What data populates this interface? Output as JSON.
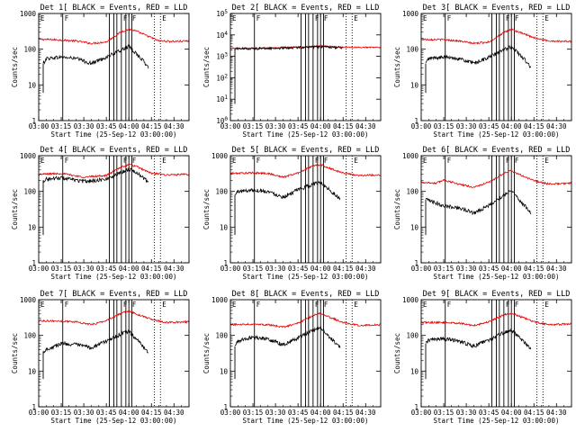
{
  "colors": {
    "events": "#000000",
    "lld": "#e60000",
    "axis": "#000000",
    "background": "#ffffff"
  },
  "chart_data": [
    {
      "type": "line",
      "title": "Det 1[ BLACK = Events, RED = LLD",
      "xlabel": "Start Time (25-Sep-12 03:00:00)",
      "ylabel": "Counts/sec",
      "xlim": [
        "03:00",
        "04:40"
      ],
      "ylim": [
        1,
        1000
      ],
      "yscale": "log",
      "x_ticks": [
        "03:00",
        "03:15",
        "03:30",
        "03:45",
        "04:00",
        "04:15",
        "04:30"
      ],
      "y_ticks": [
        "1",
        "10",
        "100",
        "1000"
      ],
      "markers": [
        {
          "label": "E",
          "time": "03:00"
        },
        {
          "label": "F",
          "time": "03:16"
        },
        {
          "label": "F",
          "time": "03:55"
        },
        {
          "label": "F",
          "time": "04:01"
        },
        {
          "label": "E",
          "time": "04:21"
        }
      ],
      "vlines_solid": [
        "03:16",
        "03:47",
        "03:50",
        "03:52",
        "03:55",
        "03:58",
        "04:00",
        "04:02"
      ],
      "vlines_dotted": [
        "04:17",
        "04:21"
      ],
      "series": [
        {
          "color": "red",
          "x": [
            "03:00",
            "03:10",
            "03:15",
            "03:25",
            "03:35",
            "03:45",
            "03:55",
            "04:00",
            "04:05",
            "04:15",
            "04:20",
            "04:30",
            "04:40"
          ],
          "y": [
            190,
            185,
            180,
            170,
            145,
            160,
            310,
            360,
            320,
            210,
            170,
            165,
            170
          ]
        },
        {
          "color": "black",
          "x": [
            "03:03",
            "03:05",
            "03:15",
            "03:25",
            "03:35",
            "03:45",
            "03:55",
            "04:00",
            "04:05",
            "04:10",
            "04:13"
          ],
          "y": [
            40,
            55,
            60,
            55,
            40,
            60,
            95,
            120,
            75,
            45,
            30
          ]
        }
      ]
    },
    {
      "type": "line",
      "title": "Det 2[ BLACK = Events, RED = LLD",
      "xlabel": "Start Time (25-Sep-12 03:00:00)",
      "ylabel": "Counts/sec",
      "xlim": [
        "03:00",
        "04:40"
      ],
      "ylim": [
        1,
        100000
      ],
      "yscale": "log",
      "x_ticks": [
        "03:00",
        "03:15",
        "03:30",
        "03:45",
        "04:00",
        "04:15",
        "04:30"
      ],
      "y_ticks": [
        "10^0",
        "10^1",
        "10^2",
        "10^3",
        "10^4",
        "10^5"
      ],
      "markers": [
        {
          "label": "E",
          "time": "03:00"
        },
        {
          "label": "F",
          "time": "03:16"
        },
        {
          "label": "F",
          "time": "03:55"
        },
        {
          "label": "F",
          "time": "04:01"
        },
        {
          "label": "E",
          "time": "04:21"
        }
      ],
      "vlines_solid": [
        "03:16",
        "03:47",
        "03:50",
        "03:52",
        "03:55",
        "03:58",
        "04:00",
        "04:02"
      ],
      "vlines_dotted": [
        "04:17",
        "04:21"
      ],
      "series": [
        {
          "color": "red",
          "x": [
            "03:00",
            "03:15",
            "03:30",
            "03:45",
            "04:00",
            "04:15",
            "04:40"
          ],
          "y": [
            2400,
            2400,
            2500,
            2700,
            3000,
            2700,
            2600
          ]
        },
        {
          "color": "black",
          "x": [
            "03:03",
            "03:15",
            "03:30",
            "03:45",
            "04:00",
            "04:15"
          ],
          "y": [
            2300,
            2300,
            2400,
            2600,
            2800,
            2500
          ]
        }
      ]
    },
    {
      "type": "line",
      "title": "Det 3[ BLACK = Events, RED = LLD",
      "xlabel": "Start Time (25-Sep-12 03:00:00)",
      "ylabel": "Counts/sec",
      "xlim": [
        "03:00",
        "04:40"
      ],
      "ylim": [
        1,
        1000
      ],
      "yscale": "log",
      "x_ticks": [
        "03:00",
        "03:15",
        "03:30",
        "03:45",
        "04:00",
        "04:15",
        "04:30"
      ],
      "y_ticks": [
        "1",
        "10",
        "100",
        "1000"
      ],
      "markers": [
        {
          "label": "E",
          "time": "03:00"
        },
        {
          "label": "F",
          "time": "03:16"
        },
        {
          "label": "F",
          "time": "03:55"
        },
        {
          "label": "F",
          "time": "04:01"
        },
        {
          "label": "E",
          "time": "04:21"
        }
      ],
      "vlines_solid": [
        "03:16",
        "03:47",
        "03:50",
        "03:52",
        "03:55",
        "03:58",
        "04:00",
        "04:02"
      ],
      "vlines_dotted": [
        "04:17",
        "04:21"
      ],
      "series": [
        {
          "color": "red",
          "x": [
            "03:00",
            "03:15",
            "03:25",
            "03:35",
            "03:45",
            "03:55",
            "04:00",
            "04:05",
            "04:15",
            "04:25",
            "04:40"
          ],
          "y": [
            190,
            185,
            170,
            145,
            160,
            290,
            360,
            300,
            210,
            170,
            165
          ]
        },
        {
          "color": "black",
          "x": [
            "03:03",
            "03:05",
            "03:15",
            "03:25",
            "03:35",
            "03:45",
            "03:55",
            "04:00",
            "04:05",
            "04:10",
            "04:13"
          ],
          "y": [
            40,
            55,
            60,
            55,
            40,
            60,
            95,
            120,
            75,
            45,
            30
          ]
        }
      ]
    },
    {
      "type": "line",
      "title": "Det 4[ BLACK = Events, RED = LLD",
      "xlabel": "Start Time (25-Sep-12 03:00:00)",
      "ylabel": "Counts/sec",
      "xlim": [
        "03:00",
        "04:40"
      ],
      "ylim": [
        1,
        1000
      ],
      "yscale": "log",
      "x_ticks": [
        "03:00",
        "03:15",
        "03:30",
        "03:45",
        "04:00",
        "04:15",
        "04:30"
      ],
      "y_ticks": [
        "1",
        "10",
        "100",
        "1000"
      ],
      "markers": [
        {
          "label": "E",
          "time": "03:00"
        },
        {
          "label": "F",
          "time": "03:16"
        },
        {
          "label": "F",
          "time": "03:55"
        },
        {
          "label": "F",
          "time": "04:01"
        },
        {
          "label": "E",
          "time": "04:21"
        }
      ],
      "vlines_solid": [
        "03:16",
        "03:47",
        "03:50",
        "03:52",
        "03:55",
        "03:58",
        "04:00",
        "04:02"
      ],
      "vlines_dotted": [
        "04:17",
        "04:21"
      ],
      "series": [
        {
          "color": "red",
          "x": [
            "03:00",
            "03:15",
            "03:30",
            "03:45",
            "03:55",
            "04:00",
            "04:05",
            "04:15",
            "04:25",
            "04:40"
          ],
          "y": [
            300,
            320,
            250,
            280,
            480,
            560,
            500,
            320,
            290,
            300
          ]
        },
        {
          "color": "black",
          "x": [
            "03:03",
            "03:05",
            "03:15",
            "03:30",
            "03:45",
            "03:55",
            "04:00",
            "04:05",
            "04:13"
          ],
          "y": [
            200,
            220,
            240,
            190,
            220,
            350,
            420,
            350,
            180
          ]
        }
      ]
    },
    {
      "type": "line",
      "title": "Det 5[ BLACK = Events, RED = LLD",
      "xlabel": "Start Time (25-Sep-12 03:00:00)",
      "ylabel": "Counts/sec",
      "xlim": [
        "03:00",
        "04:40"
      ],
      "ylim": [
        1,
        1000
      ],
      "yscale": "log",
      "x_ticks": [
        "03:00",
        "03:15",
        "03:30",
        "03:45",
        "04:00",
        "04:15",
        "04:30"
      ],
      "y_ticks": [
        "1",
        "10",
        "100",
        "1000"
      ],
      "markers": [
        {
          "label": "E",
          "time": "03:00"
        },
        {
          "label": "F",
          "time": "03:16"
        },
        {
          "label": "F",
          "time": "03:55"
        },
        {
          "label": "F",
          "time": "04:01"
        },
        {
          "label": "E",
          "time": "04:21"
        }
      ],
      "vlines_solid": [
        "03:16",
        "03:47",
        "03:50",
        "03:52",
        "03:55",
        "03:58",
        "04:00",
        "04:02"
      ],
      "vlines_dotted": [
        "04:17",
        "04:21"
      ],
      "series": [
        {
          "color": "red",
          "x": [
            "03:00",
            "03:15",
            "03:25",
            "03:35",
            "03:45",
            "03:55",
            "04:00",
            "04:05",
            "04:15",
            "04:25",
            "04:40"
          ],
          "y": [
            320,
            330,
            320,
            250,
            330,
            520,
            560,
            460,
            330,
            280,
            290
          ]
        },
        {
          "color": "black",
          "x": [
            "03:03",
            "03:05",
            "03:15",
            "03:25",
            "03:35",
            "03:45",
            "03:55",
            "04:00",
            "04:05",
            "04:10",
            "04:13"
          ],
          "y": [
            80,
            100,
            110,
            100,
            70,
            110,
            160,
            180,
            120,
            80,
            60
          ]
        }
      ]
    },
    {
      "type": "line",
      "title": "Det 6[ BLACK = Events, RED = LLD",
      "xlabel": "Start Time (25-Sep-12 03:00:00)",
      "ylabel": "Counts/sec",
      "xlim": [
        "03:00",
        "04:40"
      ],
      "ylim": [
        1,
        1000
      ],
      "yscale": "log",
      "x_ticks": [
        "03:00",
        "03:15",
        "03:30",
        "03:45",
        "04:00",
        "04:15",
        "04:30"
      ],
      "y_ticks": [
        "1",
        "10",
        "100",
        "1000"
      ],
      "markers": [
        {
          "label": "E",
          "time": "03:00"
        },
        {
          "label": "F",
          "time": "03:16"
        },
        {
          "label": "F",
          "time": "03:55"
        },
        {
          "label": "F",
          "time": "04:01"
        },
        {
          "label": "E",
          "time": "04:21"
        }
      ],
      "vlines_solid": [
        "03:16",
        "03:47",
        "03:50",
        "03:52",
        "03:55",
        "03:58",
        "04:00",
        "04:02"
      ],
      "vlines_dotted": [
        "04:17",
        "04:21"
      ],
      "series": [
        {
          "color": "red",
          "x": [
            "03:00",
            "03:10",
            "03:15",
            "03:25",
            "03:35",
            "03:45",
            "03:55",
            "04:00",
            "04:05",
            "04:15",
            "04:25",
            "04:40"
          ],
          "y": [
            180,
            170,
            210,
            160,
            130,
            180,
            320,
            380,
            300,
            200,
            160,
            170
          ]
        },
        {
          "color": "black",
          "x": [
            "03:03",
            "03:08",
            "03:15",
            "03:25",
            "03:35",
            "03:45",
            "03:55",
            "04:00",
            "04:05",
            "04:10",
            "04:13"
          ],
          "y": [
            60,
            50,
            40,
            35,
            25,
            40,
            80,
            110,
            60,
            35,
            25
          ]
        }
      ]
    },
    {
      "type": "line",
      "title": "Det 7[ BLACK = Events, RED = LLD",
      "xlabel": "Start Time (25-Sep-12 03:00:00)",
      "ylabel": "Counts/sec",
      "xlim": [
        "03:00",
        "04:40"
      ],
      "ylim": [
        1,
        1000
      ],
      "yscale": "log",
      "x_ticks": [
        "03:00",
        "03:15",
        "03:30",
        "03:45",
        "04:00",
        "04:15",
        "04:30"
      ],
      "y_ticks": [
        "1",
        "10",
        "100",
        "1000"
      ],
      "markers": [
        {
          "label": "E",
          "time": "03:00"
        },
        {
          "label": "F",
          "time": "03:16"
        },
        {
          "label": "F",
          "time": "03:55"
        },
        {
          "label": "F",
          "time": "04:01"
        },
        {
          "label": "E",
          "time": "04:21"
        }
      ],
      "vlines_solid": [
        "03:16",
        "03:47",
        "03:50",
        "03:52",
        "03:55",
        "03:58",
        "04:00",
        "04:02"
      ],
      "vlines_dotted": [
        "04:17",
        "04:21"
      ],
      "series": [
        {
          "color": "red",
          "x": [
            "03:00",
            "03:15",
            "03:25",
            "03:35",
            "03:45",
            "03:55",
            "04:00",
            "04:05",
            "04:15",
            "04:25",
            "04:40"
          ],
          "y": [
            260,
            250,
            240,
            200,
            260,
            420,
            480,
            400,
            280,
            230,
            240
          ]
        },
        {
          "color": "black",
          "x": [
            "03:03",
            "03:05",
            "03:15",
            "03:25",
            "03:35",
            "03:45",
            "03:55",
            "04:00",
            "04:05",
            "04:10",
            "04:13"
          ],
          "y": [
            35,
            40,
            60,
            55,
            45,
            70,
            110,
            130,
            80,
            45,
            35
          ]
        }
      ]
    },
    {
      "type": "line",
      "title": "Det 8[ BLACK = Events, RED = LLD",
      "xlabel": "Start Time (25-Sep-12 03:00:00)",
      "ylabel": "Counts/sec",
      "xlim": [
        "03:00",
        "04:40"
      ],
      "ylim": [
        1,
        1000
      ],
      "yscale": "log",
      "x_ticks": [
        "03:00",
        "03:15",
        "03:30",
        "03:45",
        "04:00",
        "04:15",
        "04:30"
      ],
      "y_ticks": [
        "1",
        "10",
        "100",
        "1000"
      ],
      "markers": [
        {
          "label": "E",
          "time": "03:00"
        },
        {
          "label": "F",
          "time": "03:16"
        },
        {
          "label": "F",
          "time": "03:55"
        },
        {
          "label": "F",
          "time": "04:01"
        },
        {
          "label": "E",
          "time": "04:21"
        }
      ],
      "vlines_solid": [
        "03:16",
        "03:47",
        "03:50",
        "03:52",
        "03:55",
        "03:58",
        "04:00",
        "04:02"
      ],
      "vlines_dotted": [
        "04:17",
        "04:21"
      ],
      "series": [
        {
          "color": "red",
          "x": [
            "03:00",
            "03:15",
            "03:25",
            "03:35",
            "03:45",
            "03:55",
            "04:00",
            "04:05",
            "04:15",
            "04:25",
            "04:40"
          ],
          "y": [
            200,
            210,
            200,
            170,
            220,
            360,
            420,
            340,
            230,
            190,
            200
          ]
        },
        {
          "color": "black",
          "x": [
            "03:03",
            "03:05",
            "03:15",
            "03:25",
            "03:35",
            "03:45",
            "03:55",
            "04:00",
            "04:05",
            "04:10",
            "04:13"
          ],
          "y": [
            50,
            70,
            90,
            80,
            55,
            85,
            140,
            160,
            100,
            60,
            45
          ]
        }
      ]
    },
    {
      "type": "line",
      "title": "Det 9[ BLACK = Events, RED = LLD",
      "xlabel": "Start Time (25-Sep-12 03:00:00)",
      "ylabel": "Counts/sec",
      "xlim": [
        "03:00",
        "04:40"
      ],
      "ylim": [
        1,
        1000
      ],
      "yscale": "log",
      "x_ticks": [
        "03:00",
        "03:15",
        "03:30",
        "03:45",
        "04:00",
        "04:15",
        "04:30"
      ],
      "y_ticks": [
        "1",
        "10",
        "100",
        "1000"
      ],
      "markers": [
        {
          "label": "E",
          "time": "03:00"
        },
        {
          "label": "F",
          "time": "03:16"
        },
        {
          "label": "F",
          "time": "03:55"
        },
        {
          "label": "F",
          "time": "04:01"
        },
        {
          "label": "E",
          "time": "04:21"
        }
      ],
      "vlines_solid": [
        "03:16",
        "03:47",
        "03:50",
        "03:52",
        "03:55",
        "03:58",
        "04:00",
        "04:02"
      ],
      "vlines_dotted": [
        "04:17",
        "04:21"
      ],
      "series": [
        {
          "color": "red",
          "x": [
            "03:00",
            "03:15",
            "03:25",
            "03:35",
            "03:45",
            "03:55",
            "04:00",
            "04:05",
            "04:15",
            "04:25",
            "04:40"
          ],
          "y": [
            230,
            230,
            220,
            190,
            240,
            380,
            420,
            350,
            240,
            200,
            210
          ]
        },
        {
          "color": "black",
          "x": [
            "03:03",
            "03:05",
            "03:15",
            "03:25",
            "03:35",
            "03:45",
            "03:55",
            "04:00",
            "04:05",
            "04:10",
            "04:13"
          ],
          "y": [
            60,
            75,
            80,
            70,
            50,
            75,
            120,
            140,
            90,
            55,
            40
          ]
        }
      ]
    }
  ]
}
